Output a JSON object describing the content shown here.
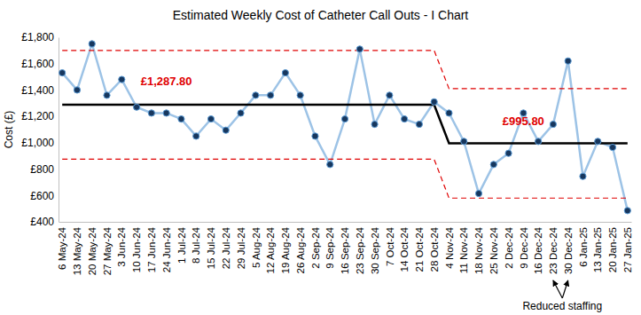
{
  "chart_data": {
    "type": "line",
    "title": "Estimated Weekly Cost of Catheter Call Outs - I Chart",
    "y_label": "Cost (£)",
    "categories": [
      "6 May-24",
      "13 May-24",
      "20 May-24",
      "27 May-24",
      "3 Jun-24",
      "10 Jun-24",
      "17 Jun-24",
      "24 Jun-24",
      "1 Jul-24",
      "8 Jul-24",
      "15 Jul-24",
      "22 Jul-24",
      "29 Jul-24",
      "5 Aug-24",
      "12 Aug-24",
      "19 Aug-24",
      "26 Aug-24",
      "2 Sep-24",
      "9 Sep-24",
      "16 Sep-24",
      "23 Sep-24",
      "30 Sep-24",
      "7 Oct-24",
      "14 Oct-24",
      "21 Oct-24",
      "28 Oct-24",
      "4 Nov-24",
      "11 Nov-24",
      "18 Nov-24",
      "25 Nov-24",
      "2 Dec-24",
      "9 Dec-24",
      "16 Dec-24",
      "23 Dec-24",
      "30 Dec-24",
      "6 Jan-25",
      "13 Jan-25",
      "20 Jan-25",
      "27 Jan-25"
    ],
    "series": [
      {
        "color": "#9dc3e6",
        "marker": "circle",
        "line_style": "solid",
        "values": [
          1530,
          1400,
          1750,
          1360,
          1480,
          1270,
          1225,
          1225,
          1180,
          1050,
          1180,
          1095,
          1225,
          1360,
          1360,
          1530,
          1360,
          1050,
          835,
          1180,
          1710,
          1140,
          1360,
          1180,
          1140,
          1310,
          1225,
          1010,
          615,
          835,
          920,
          1225,
          1010,
          1140,
          1620,
          745,
          1010,
          965,
          485
        ]
      },
      {
        "color": "#000000",
        "line_style": "solid",
        "values": [
          1287.8,
          1287.8,
          1287.8,
          1287.8,
          1287.8,
          1287.8,
          1287.8,
          1287.8,
          1287.8,
          1287.8,
          1287.8,
          1287.8,
          1287.8,
          1287.8,
          1287.8,
          1287.8,
          1287.8,
          1287.8,
          1287.8,
          1287.8,
          1287.8,
          1287.8,
          1287.8,
          1287.8,
          1287.8,
          1287.8,
          995.8,
          995.8,
          995.8,
          995.8,
          995.8,
          995.8,
          995.8,
          995.8,
          995.8,
          995.8,
          995.8,
          995.8,
          995.8
        ]
      },
      {
        "color": "#e00000",
        "line_style": "dashed",
        "values": [
          1700,
          1700,
          1700,
          1700,
          1700,
          1700,
          1700,
          1700,
          1700,
          1700,
          1700,
          1700,
          1700,
          1700,
          1700,
          1700,
          1700,
          1700,
          1700,
          1700,
          1700,
          1700,
          1700,
          1700,
          1700,
          1700,
          1410,
          1410,
          1410,
          1410,
          1410,
          1410,
          1410,
          1410,
          1410,
          1410,
          1410,
          1410,
          1410
        ]
      },
      {
        "color": "#e00000",
        "line_style": "dashed",
        "values": [
          875,
          875,
          875,
          875,
          875,
          875,
          875,
          875,
          875,
          875,
          875,
          875,
          875,
          875,
          875,
          875,
          875,
          875,
          875,
          875,
          875,
          875,
          875,
          875,
          875,
          875,
          580,
          580,
          580,
          580,
          580,
          580,
          580,
          580,
          580,
          580,
          580,
          580,
          580
        ]
      }
    ],
    "annotations": [
      {
        "text": "£1,287.80",
        "color": "#e00000"
      },
      {
        "text": "£995.80",
        "color": "#e00000"
      },
      {
        "text": "Reduced staffing",
        "color": "#000000"
      }
    ],
    "ylim": [
      400,
      1800
    ],
    "yticks": [
      {
        "value": 400,
        "label": "£400"
      },
      {
        "value": 600,
        "label": "£600"
      },
      {
        "value": 800,
        "label": "£800"
      },
      {
        "value": 1000,
        "label": "£1,000"
      },
      {
        "value": 1200,
        "label": "£1,200"
      },
      {
        "value": 1400,
        "label": "£1,400"
      },
      {
        "value": 1600,
        "label": "£1,600"
      },
      {
        "value": 1800,
        "label": "£1,800"
      }
    ],
    "grid": false
  }
}
